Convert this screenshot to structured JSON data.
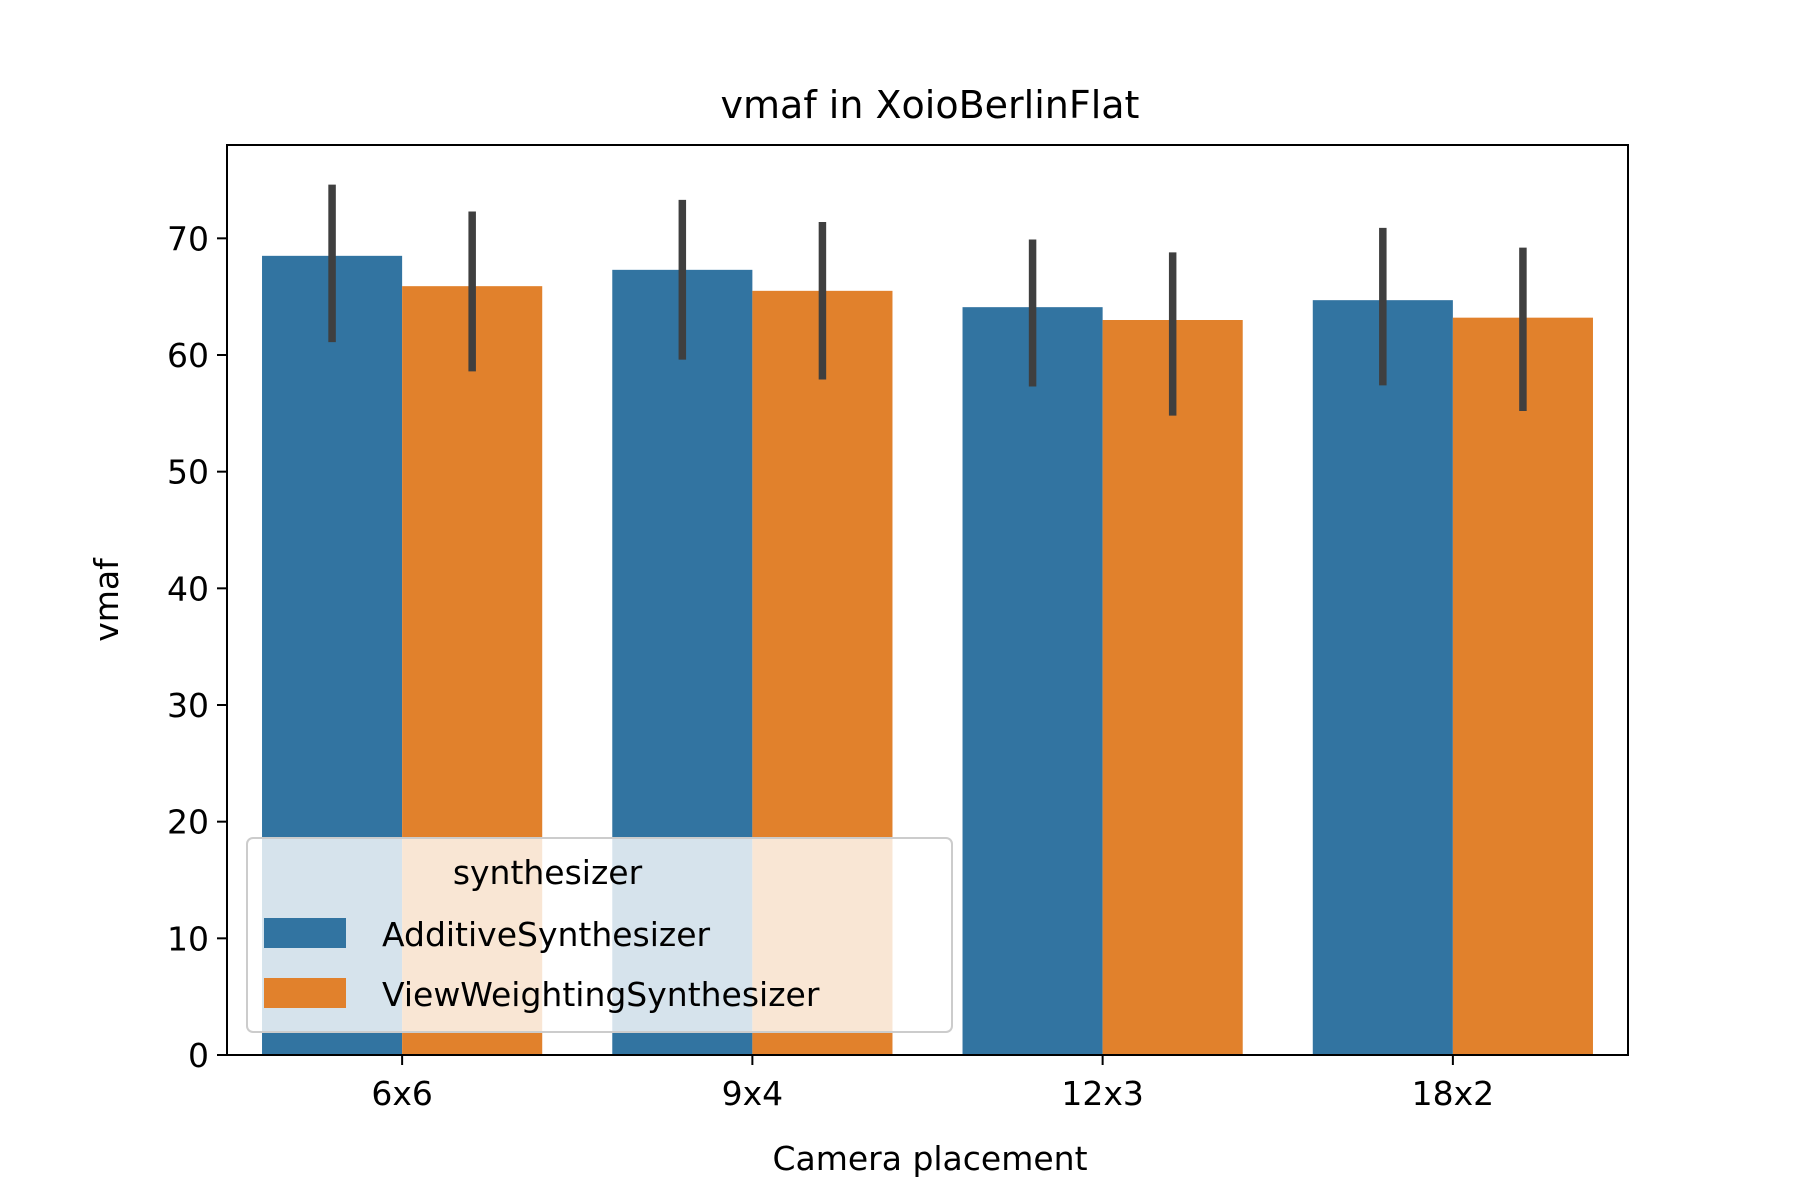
{
  "chart_data": {
    "type": "bar",
    "title": "vmaf in XoioBerlinFlat",
    "xlabel": "Camera placement",
    "ylabel": "vmaf",
    "categories": [
      "6x6",
      "9x4",
      "12x3",
      "18x2"
    ],
    "ylim": [
      0,
      78
    ],
    "yticks": [
      0,
      10,
      20,
      30,
      40,
      50,
      60,
      70
    ],
    "grid": false,
    "legend": {
      "title": "synthesizer",
      "placement": "lower-left"
    },
    "series": [
      {
        "name": "AdditiveSynthesizer",
        "color": "#3274a1",
        "values": [
          68.5,
          67.3,
          64.1,
          64.7
        ],
        "error_low": [
          61.1,
          59.6,
          57.3,
          57.4
        ],
        "error_high": [
          74.6,
          73.3,
          69.9,
          70.9
        ]
      },
      {
        "name": "ViewWeightingSynthesizer",
        "color": "#e1812c",
        "values": [
          65.9,
          65.5,
          63.0,
          63.2
        ],
        "error_low": [
          58.6,
          57.9,
          54.8,
          55.2
        ],
        "error_high": [
          72.3,
          71.4,
          68.8,
          69.2
        ]
      }
    ],
    "error_bar_color": "#3f3f3f"
  }
}
